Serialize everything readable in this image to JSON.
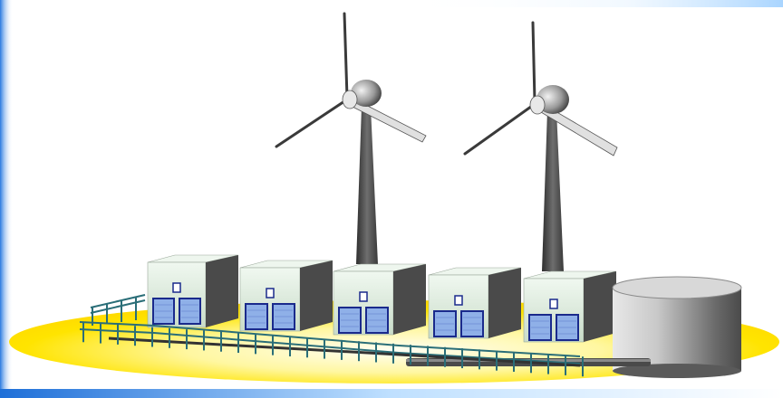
{
  "scene": {
    "turbines": [
      {
        "id": "turbine-1"
      },
      {
        "id": "turbine-2"
      }
    ],
    "containers": [
      {
        "id": "container-1"
      },
      {
        "id": "container-2"
      },
      {
        "id": "container-3"
      },
      {
        "id": "container-4"
      },
      {
        "id": "container-5"
      }
    ],
    "tank": {
      "id": "storage-tank"
    },
    "colors": {
      "platform": "#ffe000",
      "platform_glow": "#fffbe0",
      "container_front": "#dfeee0",
      "container_side": "#4a4a4a",
      "door_frame": "#1a2a8c",
      "door_panel": "#8fb0e8",
      "railing": "#2a6e78",
      "tank_body": "#b8b8b8",
      "tower": "#5a5a5a",
      "blade": "#d8d8d8",
      "accent_blue": "#1e6fd8"
    }
  }
}
